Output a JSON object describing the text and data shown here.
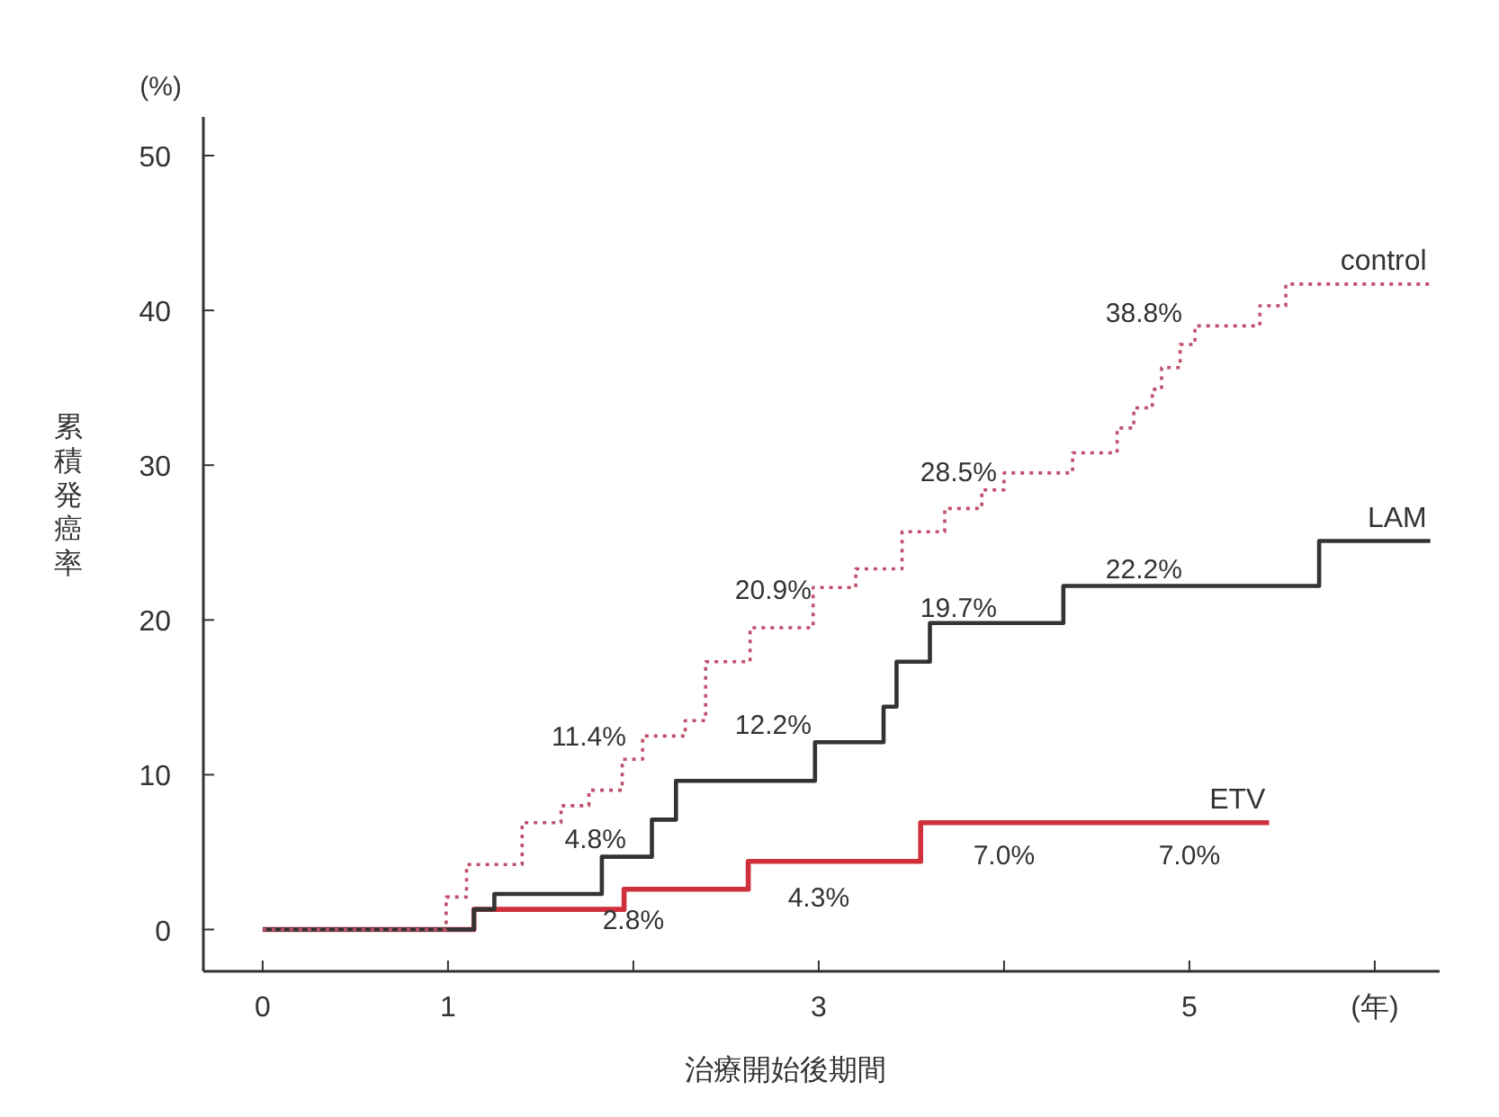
{
  "chart_data": {
    "type": "step",
    "xlabel": "治療開始後期間",
    "ylabel": "累積発癌率",
    "xlim": [
      -0.32,
      6.35
    ],
    "ylim": [
      -2.7,
      52.5
    ],
    "xticks": [
      0,
      1,
      {
        "value": 2,
        "label": null
      },
      3,
      {
        "value": 4,
        "label": null
      },
      5,
      {
        "value": 6,
        "label": "(年)"
      }
    ],
    "yticks": [
      0,
      10,
      20,
      30,
      40,
      50
    ],
    "grid": false,
    "series": [
      {
        "name": "control",
        "color": "#c0506a",
        "line_style": "dotted",
        "x": [
          0,
          0.99,
          1.1,
          1.4,
          1.61,
          1.76,
          1.94,
          2.05,
          2.28,
          2.39,
          2.63,
          2.97,
          3.2,
          3.45,
          3.68,
          3.88,
          4.0,
          4.37,
          4.61,
          4.7,
          4.8,
          4.85,
          4.95,
          5.03,
          5.38,
          5.52,
          6.3
        ],
        "values": [
          0,
          2.1,
          4.2,
          6.9,
          8.0,
          9.0,
          11.0,
          12.5,
          13.5,
          17.3,
          19.5,
          22.1,
          23.3,
          25.7,
          27.2,
          28.4,
          29.5,
          30.8,
          32.4,
          33.7,
          34.9,
          36.3,
          37.8,
          39.0,
          40.3,
          41.7,
          41.7
        ]
      },
      {
        "name": "LAM",
        "color": "#333333",
        "line_style": "solid",
        "x": [
          0,
          1.14,
          1.25,
          1.83,
          2.1,
          2.23,
          2.98,
          3.35,
          3.42,
          3.6,
          4.32,
          5.7,
          6.3
        ],
        "values": [
          0,
          1.3,
          2.3,
          4.7,
          7.1,
          9.6,
          12.1,
          14.4,
          17.3,
          19.8,
          22.2,
          25.1,
          25.1
        ]
      },
      {
        "name": "ETV",
        "color": "#d0303c",
        "line_style": "solid",
        "x": [
          0,
          1.14,
          1.95,
          2.62,
          3.55,
          5.43
        ],
        "values": [
          0,
          1.3,
          2.6,
          4.4,
          6.9,
          6.9
        ]
      }
    ],
    "annotations": [
      "(%)",
      {
        "text": "11.4%",
        "x": 2,
        "y": 11.4
      },
      {
        "text": "20.9%",
        "x": 3,
        "y": 20.9
      },
      {
        "text": "28.5%",
        "x": 4,
        "y": 28.5
      },
      {
        "text": "38.8%",
        "x": 5,
        "y": 38.8
      },
      {
        "text": "4.8%",
        "x": 2,
        "y": 4.8
      },
      {
        "text": "12.2%",
        "x": 3,
        "y": 12.2
      },
      {
        "text": "19.7%",
        "x": 4,
        "y": 19.7
      },
      {
        "text": "22.2%",
        "x": 5,
        "y": 22.2
      },
      {
        "text": "2.8%",
        "x": 2,
        "y": 2.8
      },
      {
        "text": "4.3%",
        "x": 3,
        "y": 4.3
      },
      {
        "text": "7.0%",
        "x": 4,
        "y": 7.0
      },
      {
        "text": "7.0%",
        "x": 5,
        "y": 7.0
      }
    ]
  }
}
